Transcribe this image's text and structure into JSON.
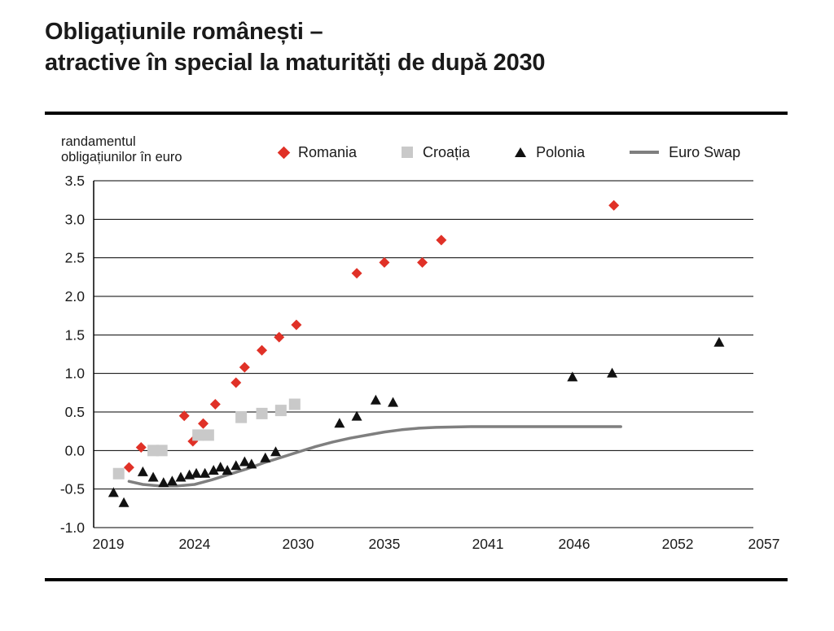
{
  "page": {
    "title_line1": "Obligațiunile românești –",
    "title_line2": "atractive în special la maturități de după 2030"
  },
  "axis_label": {
    "line1": "randamentul",
    "line2": "obligațiunilor în euro"
  },
  "legend": {
    "items": [
      {
        "label": "Romania"
      },
      {
        "label": "Croația"
      },
      {
        "label": "Polonia"
      },
      {
        "label": "Euro Swap"
      }
    ]
  },
  "colors": {
    "romania": "#e03127",
    "croatia": "#c9c9c9",
    "polonia": "#111111",
    "euro_swap": "#7f7f7f"
  },
  "chart_data": {
    "type": "scatter",
    "title": "Obligațiunile românești – atractive în special la maturități de după 2030",
    "xlabel": "",
    "ylabel": "randamentul obligațiunilor în euro",
    "xlim": [
      2019,
      2057
    ],
    "ylim": [
      -1.0,
      3.5
    ],
    "grid": true,
    "legend_position": "top",
    "xticks": [
      2019,
      2024,
      2030,
      2035,
      2041,
      2046,
      2052,
      2057
    ],
    "yticks": [
      3.5,
      3.0,
      2.5,
      2.0,
      1.5,
      1.0,
      0.5,
      0.0,
      -0.5,
      -1.0
    ],
    "series": [
      {
        "name": "Romania",
        "marker": "diamond",
        "color": "#e03127",
        "points": [
          [
            2020.2,
            -0.22
          ],
          [
            2020.9,
            0.04
          ],
          [
            2023.4,
            0.45
          ],
          [
            2023.9,
            0.12
          ],
          [
            2024.5,
            0.35
          ],
          [
            2025.2,
            0.6
          ],
          [
            2026.4,
            0.88
          ],
          [
            2026.9,
            1.08
          ],
          [
            2027.9,
            1.3
          ],
          [
            2028.9,
            1.47
          ],
          [
            2029.9,
            1.63
          ],
          [
            2033.4,
            2.3
          ],
          [
            2035.0,
            2.44
          ],
          [
            2037.2,
            2.44
          ],
          [
            2038.3,
            2.73
          ],
          [
            2048.3,
            3.18
          ]
        ]
      },
      {
        "name": "Croatia",
        "marker": "square",
        "color": "#c9c9c9",
        "points": [
          [
            2019.6,
            -0.3
          ],
          [
            2021.6,
            0.0
          ],
          [
            2022.1,
            0.0
          ],
          [
            2024.2,
            0.2
          ],
          [
            2024.8,
            0.2
          ],
          [
            2026.7,
            0.43
          ],
          [
            2027.9,
            0.48
          ],
          [
            2029.0,
            0.52
          ],
          [
            2029.8,
            0.6
          ]
        ]
      },
      {
        "name": "Polonia",
        "marker": "triangle",
        "color": "#111111",
        "points": [
          [
            2019.3,
            -0.55
          ],
          [
            2019.9,
            -0.68
          ],
          [
            2021.0,
            -0.28
          ],
          [
            2021.6,
            -0.35
          ],
          [
            2022.2,
            -0.42
          ],
          [
            2022.7,
            -0.4
          ],
          [
            2023.2,
            -0.35
          ],
          [
            2023.7,
            -0.32
          ],
          [
            2024.1,
            -0.3
          ],
          [
            2024.6,
            -0.3
          ],
          [
            2025.1,
            -0.26
          ],
          [
            2025.5,
            -0.22
          ],
          [
            2025.9,
            -0.26
          ],
          [
            2026.4,
            -0.2
          ],
          [
            2026.9,
            -0.15
          ],
          [
            2027.3,
            -0.18
          ],
          [
            2028.1,
            -0.1
          ],
          [
            2028.7,
            -0.02
          ],
          [
            2032.4,
            0.35
          ],
          [
            2033.4,
            0.44
          ],
          [
            2034.5,
            0.65
          ],
          [
            2035.5,
            0.62
          ],
          [
            2045.9,
            0.95
          ],
          [
            2048.2,
            1.0
          ],
          [
            2054.4,
            1.4
          ]
        ]
      }
    ],
    "line_series": {
      "name": "Euro Swap",
      "color": "#7f7f7f",
      "points": [
        [
          2020.2,
          -0.4
        ],
        [
          2021.0,
          -0.44
        ],
        [
          2022.0,
          -0.46
        ],
        [
          2023.0,
          -0.46
        ],
        [
          2024.0,
          -0.44
        ],
        [
          2025.0,
          -0.38
        ],
        [
          2026.0,
          -0.31
        ],
        [
          2027.0,
          -0.24
        ],
        [
          2028.0,
          -0.16
        ],
        [
          2029.0,
          -0.09
        ],
        [
          2030.0,
          -0.02
        ],
        [
          2031.0,
          0.05
        ],
        [
          2032.0,
          0.11
        ],
        [
          2033.0,
          0.16
        ],
        [
          2034.0,
          0.2
        ],
        [
          2035.0,
          0.24
        ],
        [
          2036.0,
          0.27
        ],
        [
          2037.0,
          0.29
        ],
        [
          2038.0,
          0.3
        ],
        [
          2040.0,
          0.31
        ],
        [
          2044.0,
          0.31
        ],
        [
          2048.7,
          0.31
        ]
      ]
    }
  }
}
